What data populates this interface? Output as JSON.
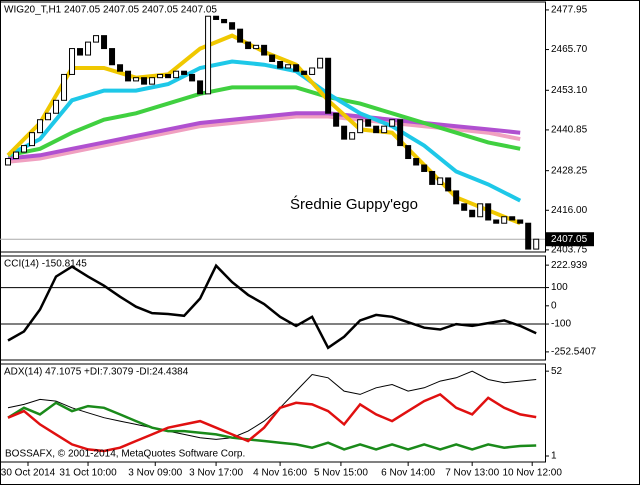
{
  "chart_data": [
    {
      "type": "candlestick",
      "title": "WIG20_T,H1 2407.05 2407.05 2407.05 2407.05",
      "annotation": "Średnie Guppy'ego",
      "open": [
        2430,
        2432,
        2434,
        2436,
        2440,
        2444,
        2446,
        2450,
        2458,
        2466,
        2464,
        2468,
        2470,
        2466,
        2461,
        2459,
        2456,
        2457,
        2455,
        2457,
        2458,
        2457,
        2459,
        2458,
        2456,
        2452,
        2476,
        2475,
        2474,
        2472,
        2468,
        2466,
        2467,
        2464,
        2462,
        2460,
        2461,
        2459,
        2458,
        2460,
        2463,
        2446,
        2442,
        2438,
        2440,
        2444,
        2442,
        2440,
        2442,
        2444,
        2436,
        2432,
        2430,
        2428,
        2424,
        2426,
        2422,
        2418,
        2416,
        2414,
        2418,
        2413,
        2412,
        2414,
        2413,
        2412,
        2404
      ],
      "close": [
        2432,
        2434,
        2436,
        2440,
        2444,
        2446,
        2450,
        2458,
        2466,
        2464,
        2468,
        2470,
        2466,
        2461,
        2459,
        2456,
        2457,
        2455,
        2457,
        2458,
        2457,
        2459,
        2458,
        2456,
        2452,
        2476,
        2475,
        2474,
        2472,
        2468,
        2466,
        2467,
        2464,
        2462,
        2460,
        2461,
        2459,
        2458,
        2460,
        2463,
        2446,
        2442,
        2438,
        2440,
        2444,
        2442,
        2440,
        2442,
        2444,
        2436,
        2432,
        2430,
        2428,
        2424,
        2426,
        2422,
        2418,
        2416,
        2414,
        2418,
        2413,
        2412,
        2414,
        2413,
        2412,
        2404,
        2407.05
      ],
      "up_color": "#ffffff",
      "down_color": "#000000",
      "ma_x": [
        0,
        4,
        8,
        12,
        16,
        20,
        24,
        28,
        32,
        36,
        40,
        44,
        48,
        52,
        56,
        60,
        64
      ],
      "ma_series": [
        {
          "color": "#f0a0c0",
          "values": [
            2431,
            2432,
            2434,
            2436,
            2438,
            2440,
            2442,
            2443,
            2444,
            2445,
            2445,
            2444,
            2443,
            2442,
            2441,
            2440,
            2438
          ]
        },
        {
          "color": "#b050d0",
          "values": [
            2432,
            2433,
            2435,
            2437,
            2439,
            2441,
            2443,
            2444,
            2445,
            2446,
            2446,
            2445,
            2444,
            2443,
            2442,
            2441,
            2440
          ]
        },
        {
          "color": "#40d040",
          "values": [
            2433,
            2435,
            2440,
            2444,
            2446,
            2449,
            2452,
            2454,
            2454,
            2454,
            2451,
            2449,
            2446,
            2443,
            2440,
            2437,
            2435
          ]
        },
        {
          "color": "#1ec8e8",
          "values": [
            2433,
            2438,
            2450,
            2453,
            2453,
            2455,
            2460,
            2462,
            2461,
            2459,
            2452,
            2446,
            2442,
            2436,
            2428,
            2424,
            2419
          ]
        },
        {
          "color": "#f0c800",
          "values": [
            2433,
            2443,
            2460,
            2460,
            2457,
            2458,
            2466,
            2470,
            2465,
            2461,
            2450,
            2441,
            2440,
            2430,
            2420,
            2416,
            2412
          ]
        }
      ],
      "last_price": 2407.05,
      "xlim": [
        -1,
        67.1
      ],
      "ylim": [
        2403.1,
        2480.4
      ],
      "yticks": [
        2477.95,
        {
          "value": 2465.7,
          "label": "2465.70"
        },
        {
          "value": 2453.1,
          "label": "2453.10"
        },
        2440.85,
        2428.25,
        {
          "value": 2416,
          "label": "2416.00"
        },
        2403.75
      ]
    },
    {
      "type": "line",
      "title": "CCI(14) -150.8145",
      "x": [
        0,
        2,
        4,
        6,
        8,
        10,
        12,
        14,
        16,
        18,
        20,
        22,
        24,
        26,
        28,
        30,
        32,
        34,
        36,
        38,
        40,
        42,
        44,
        46,
        48,
        50,
        52,
        54,
        56,
        58,
        60,
        62,
        64,
        66
      ],
      "series": [
        {
          "color": "#000000",
          "values": [
            -190,
            -140,
            -20,
            160,
            215,
            160,
            110,
            50,
            -5,
            -40,
            -45,
            -55,
            40,
            220,
            130,
            60,
            10,
            -60,
            -110,
            -60,
            -230,
            -170,
            -80,
            -50,
            -60,
            -90,
            -120,
            -130,
            -100,
            -110,
            -95,
            -80,
            -110,
            -150
          ]
        }
      ],
      "levels": [
        100,
        -100
      ],
      "xlim": [
        -1,
        67.1
      ],
      "ylim": [
        -297,
        273
      ],
      "yticks": [
        222.939,
        100,
        0,
        -100,
        -252.5407
      ]
    },
    {
      "type": "line",
      "title": "ADX(14) 47.1075 +DI:7.3079 -DI:24.4384",
      "note": "BOSSAFX, © 2001-2014, MetaQuotes Software Corp.",
      "x": [
        0,
        2,
        4,
        6,
        8,
        10,
        12,
        14,
        16,
        18,
        20,
        22,
        24,
        26,
        28,
        30,
        32,
        34,
        36,
        38,
        40,
        42,
        44,
        46,
        48,
        50,
        52,
        54,
        56,
        58,
        60,
        62,
        64,
        66
      ],
      "series": [
        {
          "color": "#000000",
          "values": [
            30,
            32,
            35,
            34,
            30,
            27,
            24,
            22,
            20,
            18,
            16,
            14,
            12,
            11,
            12,
            16,
            22,
            30,
            40,
            50,
            48,
            40,
            38,
            42,
            44,
            40,
            42,
            46,
            48,
            52,
            47,
            45,
            46,
            47
          ]
        },
        {
          "color": "#1a8a1a",
          "values": [
            24,
            30,
            26,
            33,
            28,
            31,
            30,
            26,
            22,
            18,
            16,
            16,
            15,
            14,
            12,
            11,
            10,
            9,
            8,
            6,
            9,
            5,
            8,
            5,
            8,
            5,
            8,
            5,
            8,
            5,
            8,
            6,
            7,
            7.3
          ]
        },
        {
          "color": "#e01010",
          "values": [
            24,
            28,
            20,
            14,
            8,
            5,
            4,
            6,
            10,
            14,
            18,
            20,
            22,
            18,
            14,
            10,
            18,
            30,
            33,
            32,
            28,
            20,
            32,
            26,
            22,
            28,
            34,
            38,
            30,
            26,
            36,
            30,
            26,
            24.4
          ]
        }
      ],
      "xlim": [
        -1,
        67.1
      ],
      "ylim": [
        -2.6,
        56.3
      ],
      "yticks": [
        52,
        1
      ],
      "xticks": [
        {
          "value": 2.5,
          "label": "30 Oct 2014"
        },
        {
          "value": 10,
          "label": "31 Oct 10:00"
        },
        {
          "value": 18.4,
          "label": "3 Nov 09:00"
        },
        {
          "value": 26,
          "label": "3 Nov 17:00"
        },
        {
          "value": 34,
          "label": "4 Nov 16:00"
        },
        {
          "value": 41.6,
          "label": "5 Nov 15:00"
        },
        {
          "value": 50,
          "label": "6 Nov 14:00"
        },
        {
          "value": 58,
          "label": "7 Nov 13:00"
        },
        {
          "value": 65.5,
          "label": "10 Nov 12:00"
        }
      ]
    }
  ]
}
